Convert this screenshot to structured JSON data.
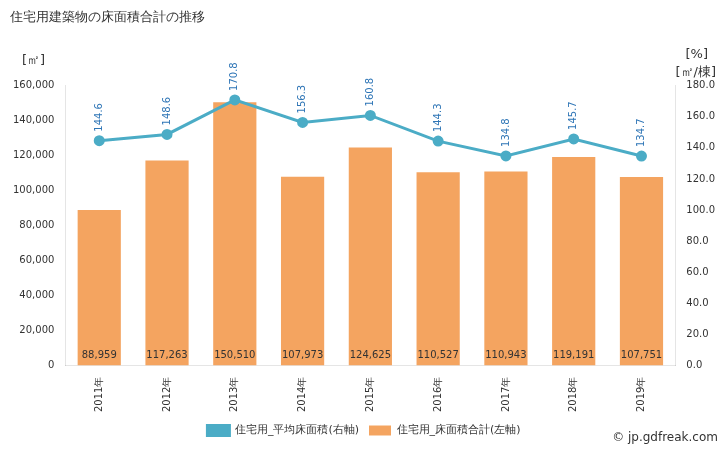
{
  "chart_data": {
    "type": "bar",
    "title": "住宅用建築物の床面積合計の推移",
    "categories": [
      "2011年",
      "2012年",
      "2013年",
      "2014年",
      "2015年",
      "2016年",
      "2017年",
      "2018年",
      "2019年"
    ],
    "series": [
      {
        "name": "住宅用_床面積合計(左軸)",
        "type": "bar",
        "axis": "y",
        "color": "#f4a460",
        "values": [
          88959,
          117263,
          150510,
          107973,
          124625,
          110527,
          110943,
          119191,
          107751
        ],
        "value_labels": [
          "88,959",
          "117,263",
          "150,510",
          "107,973",
          "124,625",
          "110,527",
          "110,943",
          "119,191",
          "107,751"
        ]
      },
      {
        "name": "住宅用_平均床面積(右軸)",
        "type": "line",
        "axis": "y2",
        "color": "#4bacc6",
        "marker": "circle",
        "values": [
          144.6,
          148.6,
          170.8,
          156.3,
          160.8,
          144.3,
          134.8,
          145.7,
          134.7
        ]
      }
    ],
    "y_label": "[㎡]",
    "y2_label": "[㎡/棟]",
    "annotations": [
      "[%]",
      "© jp.gdfreak.com"
    ],
    "ylim": [
      0,
      160000
    ],
    "yticks": [
      0,
      {
        "value": 20000,
        "label": "20,000"
      },
      {
        "value": 40000,
        "label": "40,000"
      },
      {
        "value": 60000,
        "label": "60,000"
      },
      {
        "value": 80000,
        "label": "80,000"
      },
      {
        "value": 100000,
        "label": "100,000"
      },
      {
        "value": 120000,
        "label": "120,000"
      },
      {
        "value": 140000,
        "label": "140,000"
      },
      {
        "value": 160000,
        "label": "160,000"
      }
    ],
    "y2lim": [
      0,
      180
    ],
    "y2ticks": [
      {
        "value": 0,
        "label": "0.0"
      },
      {
        "value": 20,
        "label": "20.0"
      },
      {
        "value": 40,
        "label": "40.0"
      },
      {
        "value": 60,
        "label": "60.0"
      },
      {
        "value": 80,
        "label": "80.0"
      },
      {
        "value": 100,
        "label": "100.0"
      },
      {
        "value": 120,
        "label": "120.0"
      },
      {
        "value": 140,
        "label": "140.0"
      },
      {
        "value": 160,
        "label": "160.0"
      },
      {
        "value": 180,
        "label": "180.0"
      }
    ],
    "grid": false,
    "legend": "bottom",
    "data_labels": true
  }
}
